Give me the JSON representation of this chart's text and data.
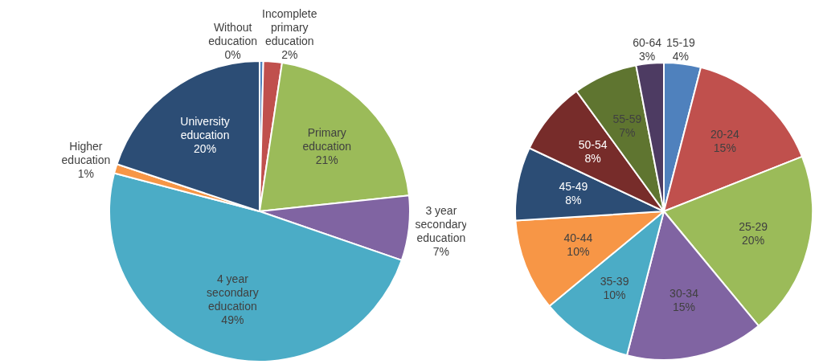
{
  "chart_data": [
    {
      "type": "pie",
      "categories": [
        "Without education",
        "Incomplete primary education",
        "Primary education",
        "3 year secondary education",
        "4 year secondary education",
        "Higher education",
        "University education"
      ],
      "values": [
        0.4,
        2,
        21,
        7,
        49,
        1,
        20
      ],
      "value_labels": [
        "0%",
        "2%",
        "21%",
        "7%",
        "49%",
        "1%",
        "20%"
      ],
      "colors": [
        "#4f81bd",
        "#c0504d",
        "#9bbb59",
        "#8064a2",
        "#4bacc6",
        "#f79646",
        "#2c4d75"
      ],
      "legend": false
    },
    {
      "type": "pie",
      "categories": [
        "15-19",
        "20-24",
        "25-29",
        "30-34",
        "35-39",
        "40-44",
        "45-49",
        "50-54",
        "55-59",
        "60-64"
      ],
      "values": [
        4,
        15,
        20,
        15,
        10,
        10,
        8,
        8,
        7,
        3
      ],
      "value_labels": [
        "4%",
        "15%",
        "20%",
        "15%",
        "10%",
        "10%",
        "8%",
        "8%",
        "7%",
        "3%"
      ],
      "colors": [
        "#4f81bd",
        "#c0504d",
        "#9bbb59",
        "#8064a2",
        "#4bacc6",
        "#f79646",
        "#2c4d75",
        "#772c2a",
        "#5f7530",
        "#4d3b62"
      ],
      "legend": false
    }
  ]
}
